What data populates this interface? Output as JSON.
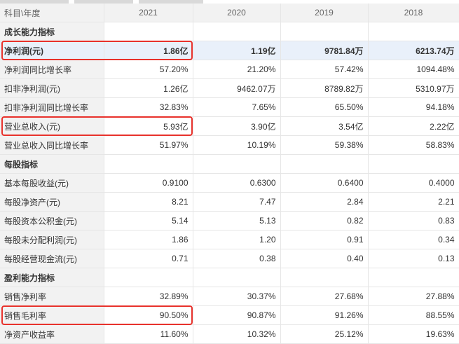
{
  "table": {
    "header": [
      "科目\\年度",
      "2021",
      "2020",
      "2019",
      "2018"
    ],
    "rows": [
      [
        "成长能力指标"
      ],
      [
        "净利润(元)",
        "1.86亿",
        "1.19亿",
        "9781.84万",
        "6213.74万"
      ],
      [
        "净利润同比增长率",
        "57.20%",
        "21.20%",
        "57.42%",
        "1094.48%"
      ],
      [
        "扣非净利润(元)",
        "1.26亿",
        "9462.07万",
        "8789.82万",
        "5310.97万"
      ],
      [
        "扣非净利润同比增长率",
        "32.83%",
        "7.65%",
        "65.50%",
        "94.18%"
      ],
      [
        "营业总收入(元)",
        "5.93亿",
        "3.90亿",
        "3.54亿",
        "2.22亿"
      ],
      [
        "营业总收入同比增长率",
        "51.97%",
        "10.19%",
        "59.38%",
        "58.83%"
      ],
      [
        "每股指标"
      ],
      [
        "基本每股收益(元)",
        "0.9100",
        "0.6300",
        "0.6400",
        "0.4000"
      ],
      [
        "每股净资产(元)",
        "8.21",
        "7.47",
        "2.84",
        "2.21"
      ],
      [
        "每股资本公积金(元)",
        "5.14",
        "5.13",
        "0.82",
        "0.83"
      ],
      [
        "每股未分配利润(元)",
        "1.86",
        "1.20",
        "0.91",
        "0.34"
      ],
      [
        "每股经营现金流(元)",
        "0.71",
        "0.38",
        "0.40",
        "0.13"
      ],
      [
        "盈利能力指标"
      ],
      [
        "销售净利率",
        "32.89%",
        "30.37%",
        "27.68%",
        "27.88%"
      ],
      [
        "销售毛利率",
        "90.50%",
        "90.87%",
        "91.26%",
        "88.55%"
      ],
      [
        "净资产收益率",
        "11.60%",
        "10.32%",
        "25.12%",
        "19.63%"
      ]
    ]
  }
}
